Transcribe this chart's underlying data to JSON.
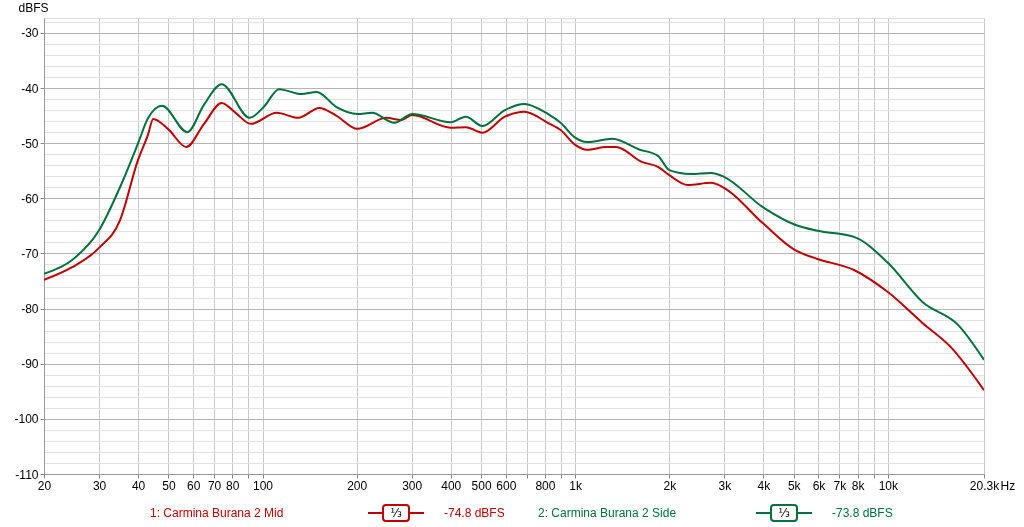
{
  "chart_data": {
    "type": "line",
    "ylabel": "dBFS",
    "xlim": [
      20,
      20300
    ],
    "ylim": [
      -110,
      -27.3
    ],
    "log": "x",
    "grid": true,
    "legend": "bottom",
    "line_style": "solid",
    "xticks": [
      20,
      30,
      40,
      50,
      60,
      70,
      80,
      {
        "value": 90,
        "label": null
      },
      100,
      200,
      300,
      400,
      500,
      600,
      {
        "value": 700,
        "label": null
      },
      800,
      {
        "value": 900,
        "label": null
      },
      {
        "value": 1000,
        "label": "1k"
      },
      {
        "value": 2000,
        "label": "2k"
      },
      {
        "value": 3000,
        "label": "3k"
      },
      {
        "value": 4000,
        "label": "4k"
      },
      {
        "value": 5000,
        "label": "5k"
      },
      {
        "value": 6000,
        "label": "6k"
      },
      {
        "value": 7000,
        "label": "7k"
      },
      {
        "value": 8000,
        "label": "8k"
      },
      {
        "value": 9000,
        "label": null
      },
      {
        "value": 10000,
        "label": "10k"
      },
      {
        "value": 20300,
        "label": "20.3k"
      }
    ],
    "xlabel": "Hz",
    "yticks": [
      -110,
      {
        "value": -108,
        "label": null
      },
      {
        "value": -106,
        "label": null
      },
      {
        "value": -104,
        "label": null
      },
      {
        "value": -102,
        "label": null
      },
      -100,
      {
        "value": -98,
        "label": null
      },
      {
        "value": -96,
        "label": null
      },
      {
        "value": -94,
        "label": null
      },
      {
        "value": -92,
        "label": null
      },
      -90,
      {
        "value": -88,
        "label": null
      },
      {
        "value": -86,
        "label": null
      },
      {
        "value": -84,
        "label": null
      },
      {
        "value": -82,
        "label": null
      },
      -80,
      {
        "value": -78,
        "label": null
      },
      {
        "value": -76,
        "label": null
      },
      {
        "value": -74,
        "label": null
      },
      {
        "value": -72,
        "label": null
      },
      -70,
      {
        "value": -68,
        "label": null
      },
      {
        "value": -66,
        "label": null
      },
      {
        "value": -64,
        "label": null
      },
      {
        "value": -62,
        "label": null
      },
      -60,
      {
        "value": -58,
        "label": null
      },
      {
        "value": -56,
        "label": null
      },
      {
        "value": -54,
        "label": null
      },
      {
        "value": -52,
        "label": null
      },
      -50,
      {
        "value": -48,
        "label": null
      },
      {
        "value": -46,
        "label": null
      },
      {
        "value": -44,
        "label": null
      },
      {
        "value": -42,
        "label": null
      },
      -40,
      {
        "value": -38,
        "label": null
      },
      {
        "value": -36,
        "label": null
      },
      {
        "value": -34,
        "label": null
      },
      {
        "value": -32,
        "label": null
      },
      -30,
      {
        "value": -28,
        "label": null
      }
    ],
    "series": [
      {
        "name": "1: Carmina Burana 2 Mid",
        "color": "#c00000",
        "x": [
          20,
          24.6,
          30,
          35,
          40,
          43,
          44.7,
          50,
          57,
          65,
          74,
          82,
          91.7,
          111,
          130,
          152,
          172,
          201,
          249,
          278,
          301,
          400,
          447,
          505,
          596,
          687,
          817,
          898,
          1000,
          1091,
          1258,
          1352,
          1633,
          1840,
          2000,
          2290,
          2720,
          2990,
          3980,
          5050,
          5960,
          7790,
          10000,
          12900,
          15900,
          20300
        ],
        "values": [
          -74.8,
          -72.5,
          -69,
          -64,
          -53,
          -48.5,
          -45.6,
          -47.5,
          -50.7,
          -46.5,
          -42.7,
          -44.5,
          -46.5,
          -44.5,
          -45.4,
          -43.6,
          -45,
          -47.4,
          -45.4,
          -45.8,
          -44.9,
          -47.2,
          -47.1,
          -48.1,
          -45.2,
          -44.3,
          -46.3,
          -47.6,
          -50.3,
          -51.2,
          -50.7,
          -50.7,
          -53.4,
          -54.3,
          -55.8,
          -57.6,
          -57.2,
          -58.1,
          -64.5,
          -69.4,
          -71,
          -73,
          -77,
          -82.6,
          -87,
          -94.8
        ]
      },
      {
        "name": "2: Carmina Burana 2 Side",
        "color": "#00703c",
        "x": [
          20,
          24.6,
          30,
          35,
          40,
          43,
          47.7,
          57.5,
          65,
          74,
          91,
          101,
          113,
          133,
          149,
          172,
          201,
          224,
          264,
          301,
          400,
          447,
          505,
          596,
          687,
          817,
          898,
          1000,
          1091,
          1315,
          1594,
          1840,
          2000,
          2340,
          2720,
          2990,
          3980,
          5050,
          5960,
          7790,
          10000,
          12900,
          16800,
          20300
        ],
        "values": [
          -73.7,
          -71.2,
          -65.8,
          -58,
          -50,
          -45.5,
          -43.2,
          -48,
          -43,
          -39.3,
          -45.4,
          -43.4,
          -40.2,
          -41.1,
          -40.7,
          -43.4,
          -44.7,
          -44.5,
          -46.3,
          -44.7,
          -46.2,
          -45.2,
          -46.9,
          -44,
          -42.9,
          -44.7,
          -46.3,
          -49,
          -49.8,
          -49.2,
          -51.1,
          -52.3,
          -54.9,
          -55.6,
          -55.4,
          -56.1,
          -61.6,
          -64.8,
          -65.9,
          -67,
          -71.7,
          -78.8,
          -83,
          -89.3
        ]
      }
    ],
    "annotations": [
      "⅓",
      "-74.8 dBFS",
      "⅓",
      "-73.8 dBFS"
    ]
  }
}
